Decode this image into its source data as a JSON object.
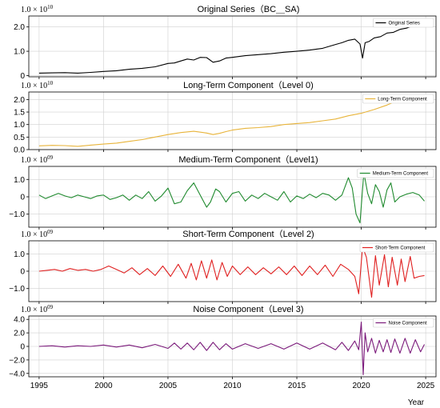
{
  "chart_data": [
    {
      "type": "line",
      "title": "Original Series（BC＿SA)",
      "multiplier": "1.0 × 10",
      "exponent": "10",
      "yticks": [
        {
          "v": 0,
          "label": "0"
        },
        {
          "v": 1.0,
          "label": "1.0"
        },
        {
          "v": 2.0,
          "label": "2.0"
        }
      ],
      "ylim": [
        -0.05,
        2.45
      ],
      "series": [
        {
          "name": "Original Series",
          "color": "#000000",
          "x": [
            1995,
            1996,
            1997,
            1998,
            1999,
            2000,
            2001,
            2002,
            2003,
            2004,
            2005,
            2005.5,
            2006,
            2006.5,
            2007,
            2007.5,
            2008,
            2008.5,
            2009,
            2009.5,
            2010,
            2011,
            2012,
            2013,
            2014,
            2015,
            2016,
            2017,
            2018,
            2018.5,
            2019,
            2019.5,
            2019.9,
            2020.1,
            2020.3,
            2020.6,
            2021,
            2021.5,
            2022,
            2022.5,
            2023,
            2023.5,
            2024,
            2024.5
          ],
          "values": [
            0.1,
            0.11,
            0.12,
            0.1,
            0.13,
            0.17,
            0.2,
            0.26,
            0.3,
            0.36,
            0.5,
            0.52,
            0.6,
            0.68,
            0.64,
            0.75,
            0.74,
            0.55,
            0.6,
            0.72,
            0.75,
            0.82,
            0.86,
            0.9,
            0.96,
            1.0,
            1.05,
            1.12,
            1.28,
            1.35,
            1.45,
            1.5,
            1.3,
            0.72,
            1.35,
            1.4,
            1.55,
            1.6,
            1.75,
            1.78,
            1.9,
            1.95,
            2.05,
            2.1
          ]
        }
      ],
      "legend": "top-right"
    },
    {
      "type": "line",
      "title": "Long-Term Component（Level 0)",
      "multiplier": "1.0 × 10",
      "exponent": "10",
      "yticks": [
        {
          "v": 0,
          "label": "0.0"
        },
        {
          "v": 0.5,
          "label": "0.5"
        },
        {
          "v": 1.0,
          "label": "1.0"
        },
        {
          "v": 1.5,
          "label": "1.5"
        },
        {
          "v": 2.0,
          "label": "2.0"
        }
      ],
      "ylim": [
        0,
        2.3
      ],
      "series": [
        {
          "name": "Long-Term Component",
          "color": "#e8b43a",
          "x": [
            1995,
            1996,
            1997,
            1998,
            1999,
            2000,
            2001,
            2002,
            2003,
            2004,
            2005,
            2006,
            2007,
            2008,
            2008.5,
            2009,
            2009.5,
            2010,
            2011,
            2012,
            2013,
            2014,
            2015,
            2016,
            2017,
            2018,
            2019,
            2020,
            2021,
            2022,
            2023,
            2023.6
          ],
          "values": [
            0.15,
            0.17,
            0.16,
            0.13,
            0.18,
            0.22,
            0.26,
            0.33,
            0.4,
            0.5,
            0.6,
            0.68,
            0.73,
            0.66,
            0.6,
            0.65,
            0.72,
            0.78,
            0.85,
            0.88,
            0.92,
            1.0,
            1.04,
            1.08,
            1.15,
            1.22,
            1.35,
            1.45,
            1.6,
            1.78,
            2.0,
            2.2
          ]
        }
      ],
      "legend": "top-right"
    },
    {
      "type": "line",
      "title": "Medium-Term Component（Level1)",
      "multiplier": "1.0 × 10",
      "exponent": "09",
      "yticks": [
        {
          "v": -1.0,
          "label": "−1.0"
        },
        {
          "v": 0,
          "label": "0"
        },
        {
          "v": 1.0,
          "label": "1.0"
        }
      ],
      "ylim": [
        -1.75,
        1.75
      ],
      "series": [
        {
          "name": "Medium-Term Component",
          "color": "#1f8a2e",
          "x": [
            1995,
            1995.5,
            1996,
            1996.5,
            1997,
            1997.5,
            1998,
            1998.5,
            1999,
            1999.5,
            2000,
            2000.5,
            2001,
            2001.5,
            2002,
            2002.5,
            2003,
            2003.5,
            2004,
            2004.5,
            2005,
            2005.5,
            2006,
            2006.5,
            2007,
            2007.5,
            2008,
            2008.3,
            2008.7,
            2009,
            2009.5,
            2010,
            2010.5,
            2011,
            2011.5,
            2012,
            2012.5,
            2013,
            2013.5,
            2014,
            2014.5,
            2015,
            2015.5,
            2016,
            2016.5,
            2017,
            2017.5,
            2018,
            2018.5,
            2019,
            2019.3,
            2019.6,
            2019.9,
            2020.2,
            2020.5,
            2020.8,
            2021.1,
            2021.4,
            2021.7,
            2022,
            2022.3,
            2022.6,
            2023,
            2023.5,
            2024,
            2024.5,
            2024.9
          ],
          "values": [
            0.1,
            -0.1,
            0.05,
            0.2,
            0.05,
            -0.05,
            0.1,
            0.0,
            -0.1,
            0.05,
            0.1,
            -0.15,
            -0.05,
            0.1,
            -0.2,
            0.1,
            -0.1,
            0.3,
            -0.25,
            0.05,
            0.5,
            -0.4,
            -0.3,
            0.35,
            0.8,
            0.1,
            -0.6,
            -0.3,
            0.45,
            0.3,
            -0.3,
            0.2,
            0.3,
            -0.25,
            0.1,
            -0.1,
            0.2,
            0.0,
            -0.2,
            0.3,
            -0.3,
            0.05,
            -0.1,
            0.15,
            -0.05,
            0.2,
            0.1,
            -0.2,
            0.1,
            1.1,
            0.5,
            -1.0,
            -1.5,
            1.4,
            0.2,
            -0.4,
            0.7,
            0.3,
            -0.6,
            0.4,
            0.8,
            -0.3,
            0.0,
            0.15,
            0.25,
            0.1,
            -0.25
          ]
        }
      ],
      "legend": "top-right"
    },
    {
      "type": "line",
      "title": "Short-Term Component（Level 2)",
      "multiplier": "1.0 × 10",
      "exponent": "09",
      "yticks": [
        {
          "v": -1.0,
          "label": "−1.0"
        },
        {
          "v": 0,
          "label": "0"
        },
        {
          "v": 1.0,
          "label": "1.0"
        }
      ],
      "ylim": [
        -1.75,
        1.75
      ],
      "series": [
        {
          "name": "Short-Term Component",
          "color": "#e02020",
          "x": [
            1995,
            1995.6,
            1996.2,
            1996.8,
            1997.4,
            1998,
            1998.6,
            1999.2,
            1999.8,
            2000.4,
            2001,
            2001.6,
            2002.2,
            2002.8,
            2003.4,
            2004,
            2004.6,
            2005.2,
            2005.8,
            2006.4,
            2006.8,
            2007.2,
            2007.6,
            2008,
            2008.4,
            2008.8,
            2009.2,
            2009.6,
            2010,
            2010.6,
            2011.2,
            2011.8,
            2012.4,
            2013,
            2013.6,
            2014.2,
            2014.8,
            2015.4,
            2016,
            2016.6,
            2017.2,
            2017.8,
            2018.4,
            2019,
            2019.5,
            2019.8,
            2020.1,
            2020.4,
            2020.8,
            2021.1,
            2021.4,
            2021.8,
            2022.1,
            2022.4,
            2022.8,
            2023.1,
            2023.4,
            2023.8,
            2024.1,
            2024.5,
            2024.9
          ],
          "values": [
            0.0,
            0.05,
            0.1,
            0.0,
            0.15,
            0.05,
            0.1,
            0.0,
            0.1,
            0.3,
            0.1,
            -0.1,
            0.2,
            -0.2,
            0.15,
            -0.25,
            0.3,
            -0.3,
            0.4,
            -0.4,
            0.45,
            -0.5,
            0.6,
            -0.4,
            0.65,
            -0.5,
            0.5,
            -0.3,
            0.3,
            -0.2,
            0.25,
            -0.2,
            0.2,
            -0.15,
            0.25,
            -0.2,
            0.3,
            -0.25,
            0.3,
            -0.2,
            0.35,
            -0.3,
            0.4,
            0.1,
            -0.3,
            -1.3,
            1.4,
            0.8,
            -1.5,
            0.9,
            -0.8,
            0.95,
            -0.9,
            0.8,
            -0.8,
            0.7,
            -0.6,
            0.85,
            -0.4,
            -0.3,
            -0.25
          ]
        }
      ],
      "legend": "top-right"
    },
    {
      "type": "line",
      "title": "Noise Component（Level 3)",
      "multiplier": "1.0 × 10",
      "exponent": "09",
      "yticks": [
        {
          "v": -4.0,
          "label": "−4.0"
        },
        {
          "v": -2.0,
          "label": "−2.0"
        },
        {
          "v": 0,
          "label": "0"
        },
        {
          "v": 2.0,
          "label": "2.0"
        },
        {
          "v": 4.0,
          "label": "4.0"
        }
      ],
      "ylim": [
        -4.5,
        4.5
      ],
      "series": [
        {
          "name": "Noise Component",
          "color": "#7b1a7b",
          "x": [
            1995,
            1996,
            1997,
            1998,
            1999,
            2000,
            2001,
            2002,
            2003,
            2004,
            2005,
            2005.5,
            2006,
            2006.5,
            2007,
            2007.5,
            2008,
            2008.5,
            2009,
            2009.5,
            2010,
            2011,
            2012,
            2013,
            2014,
            2015,
            2016,
            2017,
            2018,
            2018.5,
            2019,
            2019.5,
            2019.8,
            2020,
            2020.15,
            2020.3,
            2020.5,
            2020.8,
            2021.1,
            2021.4,
            2021.7,
            2022,
            2022.3,
            2022.6,
            2023,
            2023.4,
            2023.8,
            2024.2,
            2024.6,
            2024.9
          ],
          "values": [
            0.0,
            0.1,
            -0.1,
            0.1,
            0.0,
            0.2,
            -0.1,
            0.2,
            -0.2,
            0.3,
            -0.3,
            0.5,
            -0.4,
            0.5,
            -0.5,
            0.6,
            -0.6,
            0.6,
            -0.5,
            0.4,
            -0.4,
            0.4,
            -0.3,
            0.4,
            -0.4,
            0.5,
            -0.4,
            0.5,
            -0.5,
            0.6,
            -0.6,
            0.8,
            -0.5,
            3.6,
            -4.2,
            2.0,
            -0.8,
            1.2,
            -1.0,
            0.9,
            -0.8,
            1.0,
            -0.9,
            1.1,
            -1.0,
            1.2,
            -1.0,
            1.0,
            -0.8,
            0.3
          ]
        }
      ],
      "legend": "top-right"
    }
  ],
  "xaxis": {
    "label": "Year",
    "xlim": [
      1994.2,
      2025.8
    ],
    "ticks": [
      {
        "v": 1995,
        "label": "1995"
      },
      {
        "v": 2000,
        "label": "2000"
      },
      {
        "v": 2005,
        "label": "2005"
      },
      {
        "v": 2010,
        "label": "2010"
      },
      {
        "v": 2015,
        "label": "2015"
      },
      {
        "v": 2020,
        "label": "2020"
      },
      {
        "v": 2025,
        "label": "2025"
      }
    ],
    "grid": true
  }
}
